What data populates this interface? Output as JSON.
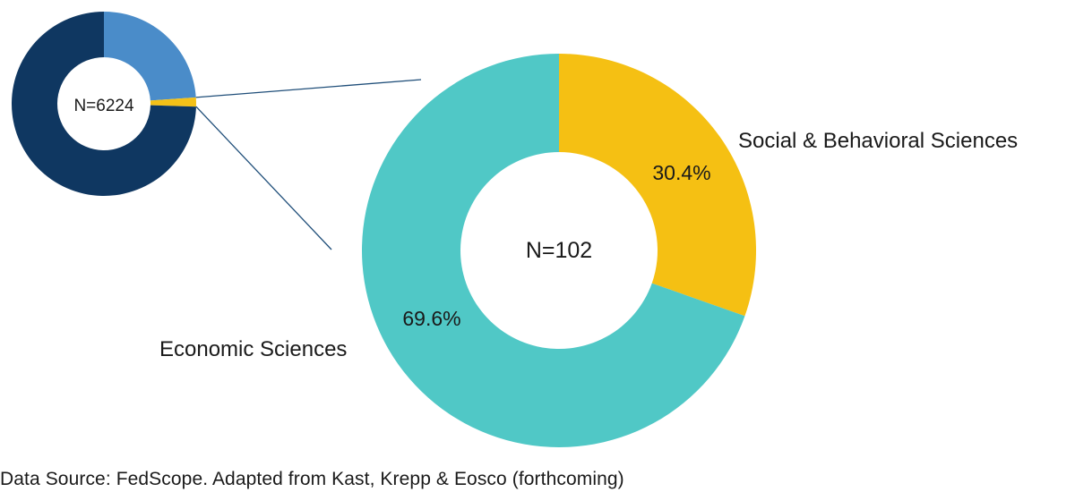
{
  "colors": {
    "small_dark": "#0f3761",
    "small_light": "#4a8cc9",
    "small_slice": "#f4c118",
    "teal": "#50c8c6",
    "yellow": "#f5c013",
    "connector": "#1f4e79"
  },
  "chart_data": [
    {
      "type": "pie",
      "donut": true,
      "center_label": "N=6224",
      "slices": [
        {
          "value": 23.9,
          "color": "#4a8cc9"
        },
        {
          "value": 1.6,
          "color": "#f4c118"
        },
        {
          "value": 74.5,
          "color": "#0f3761"
        }
      ]
    },
    {
      "type": "pie",
      "donut": true,
      "center_label": "N=102",
      "slices": [
        {
          "name": "Social & Behavioral Sciences",
          "value": 30.4,
          "label": "30.4%",
          "color": "#f5c013"
        },
        {
          "name": "Economic Sciences",
          "value": 69.6,
          "label": "69.6%",
          "color": "#50c8c6"
        }
      ]
    }
  ],
  "source_text": "Data Source: FedScope. Adapted from Kast, Krepp & Eosco (forthcoming)"
}
